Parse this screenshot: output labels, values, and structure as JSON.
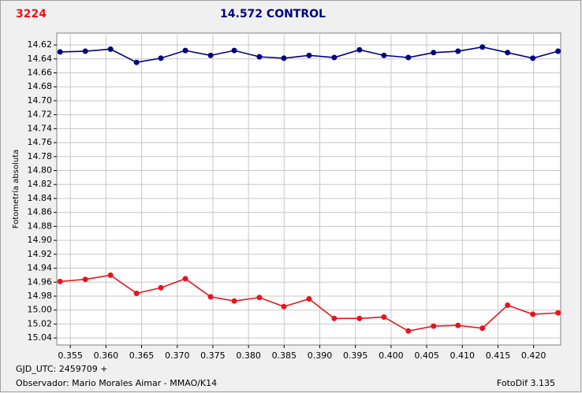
{
  "chart_data": {
    "type": "line",
    "label": "3224",
    "title": "14.572 CONTROL",
    "y_label": "Fotometría absoluta",
    "footer_left_1": "GJD_UTC: 2459709 +",
    "footer_left_2": "Observador: Mario Morales Aimar - MMAO/K14",
    "footer_right": "FotoDif 3.135",
    "x": [
      0.35356,
      0.3571,
      0.36064,
      0.36429,
      0.36771,
      0.37114,
      0.37468,
      0.378,
      0.38153,
      0.38496,
      0.3885,
      0.39203,
      0.39557,
      0.399,
      0.40242,
      0.40596,
      0.40939,
      0.41282,
      0.41635,
      0.41989,
      0.42343
    ],
    "series": [
      {
        "color": "#000080",
        "values": [
          14.63,
          14.629,
          14.626,
          14.645,
          14.639,
          14.628,
          14.635,
          14.628,
          14.637,
          14.639,
          14.635,
          14.638,
          14.627,
          14.635,
          14.638,
          14.631,
          14.629,
          14.623,
          14.631,
          14.639,
          14.629
        ]
      },
      {
        "color": "#e8141c",
        "values": [
          14.959,
          14.956,
          14.95,
          14.976,
          14.968,
          14.955,
          14.981,
          14.987,
          14.982,
          14.995,
          14.984,
          15.012,
          15.012,
          15.01,
          15.03,
          15.023,
          15.022,
          15.026,
          14.993,
          15.006,
          15.004
        ]
      }
    ],
    "xlim": [
      0.3531,
      0.4238
    ],
    "xticks": [
      0.355,
      {
        "value": 0.36,
        "label": "0.360"
      },
      0.365,
      {
        "value": 0.37,
        "label": "0.370"
      },
      0.375,
      {
        "value": 0.38,
        "label": "0.380"
      },
      0.385,
      {
        "value": 0.39,
        "label": "0.390"
      },
      0.395,
      {
        "value": 0.4,
        "label": "0.400"
      },
      0.405,
      {
        "value": 0.41,
        "label": "0.410"
      },
      0.415,
      {
        "value": 0.42,
        "label": "0.420"
      }
    ],
    "ylim": [
      14.603,
      15.05
    ],
    "y_inverted": true,
    "yticks": [
      14.62,
      14.64,
      14.66,
      14.68,
      {
        "value": 14.7,
        "label": "14.70"
      },
      14.72,
      14.74,
      14.76,
      14.78,
      {
        "value": 14.8,
        "label": "14.80"
      },
      14.82,
      14.84,
      14.86,
      14.88,
      {
        "value": 14.9,
        "label": "14.90"
      },
      14.92,
      14.94,
      14.96,
      14.98,
      {
        "value": 15,
        "label": "15.00"
      },
      15.02,
      15.04
    ],
    "grid": true
  }
}
